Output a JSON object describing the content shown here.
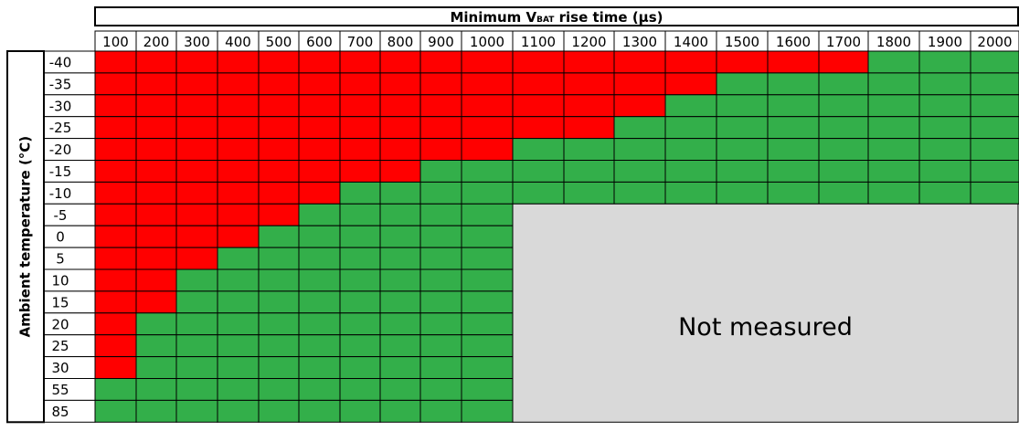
{
  "chart_data": {
    "type": "heatmap",
    "title": "",
    "xlabel_parts": {
      "main": "Minimum V",
      "subscript": "BAT",
      "rest": " rise time (µs)"
    },
    "ylabel": "Ambient temperature (°C)",
    "x": [
      100,
      200,
      300,
      400,
      500,
      600,
      700,
      800,
      900,
      1000,
      1100,
      1200,
      1300,
      1400,
      1500,
      1600,
      1700,
      1800,
      1900,
      2000
    ],
    "y": [
      "-40",
      "-35",
      "-30",
      "-25",
      "-20",
      "-15",
      "-10",
      "-5",
      "0",
      "5",
      "10",
      "15",
      "20",
      "25",
      "30",
      "55",
      "85"
    ],
    "fail_threshold_count": [
      17,
      14,
      13,
      12,
      10,
      8,
      6,
      5,
      4,
      3,
      2,
      2,
      1,
      1,
      1,
      0,
      0
    ],
    "measured_count": [
      20,
      20,
      20,
      20,
      20,
      20,
      20,
      10,
      10,
      10,
      10,
      10,
      10,
      10,
      10,
      10,
      10
    ],
    "not_measured_label": "Not measured",
    "colors": {
      "fail": "#ff0000",
      "pass": "#33af4a",
      "not_measured": "#d9d9d9",
      "border": "#000000"
    },
    "legend": "none",
    "grid": true
  }
}
